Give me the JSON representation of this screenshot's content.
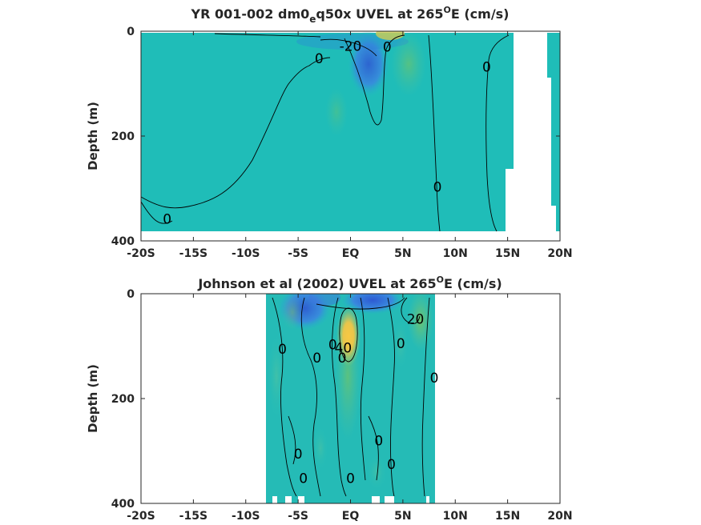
{
  "chart_data": [
    {
      "type": "heatmap",
      "title_parts": {
        "main": "YR 001-002 dm0",
        "subscript": "e",
        "rest": "q50x UVEL at 265",
        "superscript": "O",
        "tail": "E (cm/s)"
      },
      "ylabel": "Depth (m)",
      "xlabel": "",
      "x_ticks": [
        "-20S",
        "-15S",
        "-10S",
        "-5S",
        "EQ",
        "5N",
        "10N",
        "15N",
        "20N"
      ],
      "y_ticks": [
        "0",
        "200",
        "400"
      ],
      "xlim": [
        -20,
        20
      ],
      "ylim": [
        0,
        400
      ],
      "y_reversed": true,
      "data_extent": {
        "x": [
          -20,
          20
        ],
        "y": [
          0,
          380
        ]
      },
      "contour_labels": [
        {
          "text": "0",
          "x": -17.5,
          "y": 358
        },
        {
          "text": "0",
          "x": -3.0,
          "y": 52
        },
        {
          "text": "-20",
          "x": 0.0,
          "y": 28
        },
        {
          "text": "0",
          "x": 3.5,
          "y": 30
        },
        {
          "text": "0",
          "x": 8.3,
          "y": 297
        },
        {
          "text": "0",
          "x": 13.0,
          "y": 68
        }
      ]
    },
    {
      "type": "heatmap",
      "title_parts": {
        "main": "Johnson et al (2002) UVEL at 265",
        "superscript": "O",
        "tail": "E (cm/s)"
      },
      "ylabel": "Depth (m)",
      "xlabel": "",
      "x_ticks": [
        "-20S",
        "-15S",
        "-10S",
        "-5S",
        "EQ",
        "5N",
        "10N",
        "15N",
        "20N"
      ],
      "y_ticks": [
        "0",
        "200",
        "400"
      ],
      "xlim": [
        -20,
        20
      ],
      "ylim": [
        0,
        400
      ],
      "y_reversed": true,
      "data_extent": {
        "x": [
          -8,
          8
        ],
        "y": [
          0,
          400
        ]
      },
      "contour_labels": [
        {
          "text": "20",
          "x": 6.2,
          "y": 48
        },
        {
          "text": "0",
          "x": -6.5,
          "y": 105
        },
        {
          "text": "0",
          "x": -1.7,
          "y": 97
        },
        {
          "text": "0",
          "x": -3.2,
          "y": 122
        },
        {
          "text": "40",
          "x": -0.7,
          "y": 103
        },
        {
          "text": "0",
          "x": -0.8,
          "y": 122
        },
        {
          "text": "0",
          "x": 4.8,
          "y": 95
        },
        {
          "text": "0",
          "x": 8.0,
          "y": 160
        },
        {
          "text": "0",
          "x": 2.7,
          "y": 280
        },
        {
          "text": "0",
          "x": 3.9,
          "y": 325
        },
        {
          "text": "0",
          "x": -5.0,
          "y": 305
        },
        {
          "text": "0",
          "x": -4.5,
          "y": 352
        },
        {
          "text": "0",
          "x": 0.0,
          "y": 352
        }
      ]
    }
  ]
}
